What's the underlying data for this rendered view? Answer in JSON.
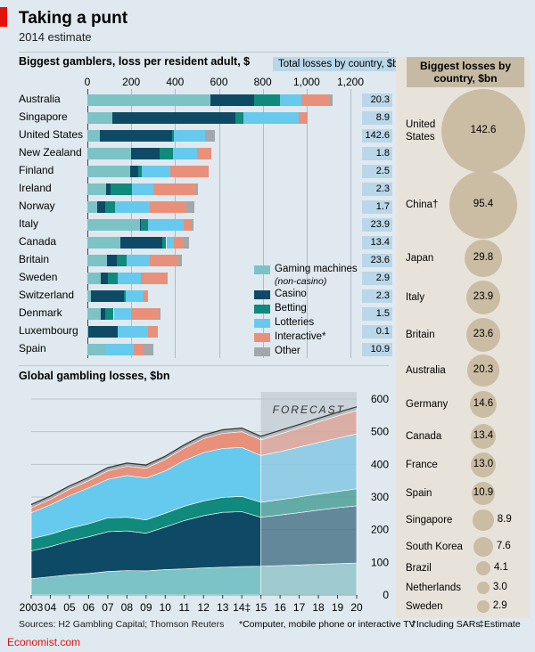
{
  "header": {
    "title": "Taking a punt",
    "subtitle": "2014 estimate"
  },
  "colors": {
    "gaming_machines": "#7cc3c6",
    "casino": "#0e4a66",
    "betting": "#0f8a7c",
    "lotteries": "#66c9ee",
    "interactive": "#e8907a",
    "other": "#a3a7aa",
    "bubble": "#cbbca4",
    "total_box": "#b9d7e8"
  },
  "chart_data": [
    {
      "type": "bar",
      "stacked": true,
      "orientation": "horizontal",
      "title": "Biggest gamblers, loss per resident adult, $",
      "xlim": [
        0,
        1200
      ],
      "xticks": [
        "0",
        "200",
        "400",
        "600",
        "800",
        "1,000",
        "1,200"
      ],
      "categories": [
        "Australia",
        "Singapore",
        "United States",
        "New Zealand",
        "Finland",
        "Ireland",
        "Norway",
        "Italy",
        "Canada",
        "Britain",
        "Sweden",
        "Switzerland",
        "Denmark",
        "Luxembourg",
        "Spain"
      ],
      "series": [
        {
          "name": "Gaming machines",
          "note": "(non-casino)",
          "values": [
            560,
            115,
            55,
            200,
            195,
            85,
            45,
            240,
            150,
            90,
            60,
            15,
            60,
            5,
            85
          ]
        },
        {
          "name": "Casino",
          "values": [
            200,
            560,
            330,
            130,
            35,
            20,
            35,
            5,
            190,
            45,
            35,
            150,
            20,
            135,
            0
          ]
        },
        {
          "name": "Betting",
          "values": [
            120,
            35,
            10,
            60,
            20,
            100,
            45,
            30,
            20,
            45,
            45,
            10,
            40,
            0,
            0
          ]
        },
        {
          "name": "Lotteries",
          "values": [
            95,
            255,
            140,
            110,
            130,
            95,
            160,
            165,
            35,
            105,
            105,
            80,
            80,
            135,
            125
          ]
        },
        {
          "name": "Interactive*",
          "values": [
            130,
            40,
            0,
            65,
            175,
            195,
            165,
            35,
            45,
            130,
            120,
            20,
            125,
            45,
            45
          ]
        },
        {
          "name": "Other",
          "values": [
            15,
            0,
            45,
            0,
            0,
            10,
            40,
            10,
            25,
            15,
            0,
            0,
            10,
            0,
            45
          ]
        }
      ],
      "total_losses": {
        "label": "Total losses by country, $bn",
        "values": [
          "20.3",
          "8.9",
          "142.6",
          "1.8",
          "2.5",
          "2.3",
          "1.7",
          "23.9",
          "13.4",
          "23.6",
          "2.9",
          "2.3",
          "1.5",
          "0.1",
          "10.9"
        ]
      }
    },
    {
      "type": "bubble",
      "title": "Biggest losses by country, $bn",
      "categories": [
        "United States",
        "China†",
        "Japan",
        "Italy",
        "Britain",
        "Australia",
        "Germany",
        "Canada",
        "France",
        "Spain",
        "Singapore",
        "South Korea",
        "Brazil",
        "Netherlands",
        "Sweden"
      ],
      "values": [
        142.6,
        95.4,
        29.8,
        23.9,
        23.6,
        20.3,
        14.6,
        13.4,
        13.0,
        10.9,
        8.9,
        7.6,
        4.1,
        3.0,
        2.9
      ],
      "value_labels": [
        "142.6",
        "95.4",
        "29.8",
        "23.9",
        "23.6",
        "20.3",
        "14.6",
        "13.4",
        "13.0",
        "10.9",
        "8.9",
        "7.6",
        "4.1",
        "3.0",
        "2.9"
      ]
    },
    {
      "type": "area",
      "stacked": true,
      "title": "Global gambling losses, $bn",
      "annotation": "FORECAST",
      "forecast_start": 2015,
      "x": [
        2003,
        2004,
        2005,
        2006,
        2007,
        2008,
        2009,
        2010,
        2011,
        2012,
        2013,
        2014,
        2015,
        2016,
        2017,
        2018,
        2019,
        2020
      ],
      "xtick_labels": [
        "2003",
        "04",
        "05",
        "06",
        "07",
        "08",
        "09",
        "10",
        "11",
        "12",
        "13",
        "14‡",
        "15",
        "16",
        "17",
        "18",
        "19",
        "20"
      ],
      "ylim": [
        0,
        600
      ],
      "yticks": [
        "0",
        "100",
        "200",
        "300",
        "400",
        "500",
        "600"
      ],
      "series": [
        {
          "name": "Gaming machines",
          "values": [
            50,
            56,
            62,
            66,
            72,
            75,
            74,
            78,
            80,
            83,
            85,
            87,
            88,
            90,
            92,
            94,
            96,
            98
          ]
        },
        {
          "name": "Casino",
          "values": [
            85,
            92,
            103,
            112,
            122,
            121,
            115,
            130,
            148,
            160,
            168,
            168,
            150,
            155,
            160,
            166,
            171,
            175
          ]
        },
        {
          "name": "Betting",
          "values": [
            37,
            38,
            39,
            40,
            42,
            42,
            41,
            42,
            44,
            45,
            46,
            47,
            46,
            47,
            48,
            49,
            50,
            52
          ]
        },
        {
          "name": "Lotteries",
          "values": [
            80,
            90,
            100,
            110,
            118,
            128,
            128,
            130,
            140,
            148,
            150,
            150,
            143,
            147,
            153,
            158,
            163,
            168
          ]
        },
        {
          "name": "Interactive*",
          "values": [
            15,
            17,
            20,
            22,
            26,
            28,
            30,
            35,
            38,
            43,
            46,
            48,
            48,
            54,
            58,
            63,
            68,
            72
          ]
        },
        {
          "name": "Other",
          "values": [
            10,
            10,
            10,
            10,
            10,
            10,
            10,
            10,
            10,
            11,
            11,
            11,
            11,
            11,
            11,
            11,
            11,
            11
          ]
        }
      ]
    }
  ],
  "footer": {
    "source": "Sources: H2 Gambling Capital; Thomson Reuters",
    "note1": "*Computer, mobile phone or interactive TV",
    "note2": "†Including SARs",
    "note3": "‡Estimate",
    "brand": "Economist.com"
  }
}
